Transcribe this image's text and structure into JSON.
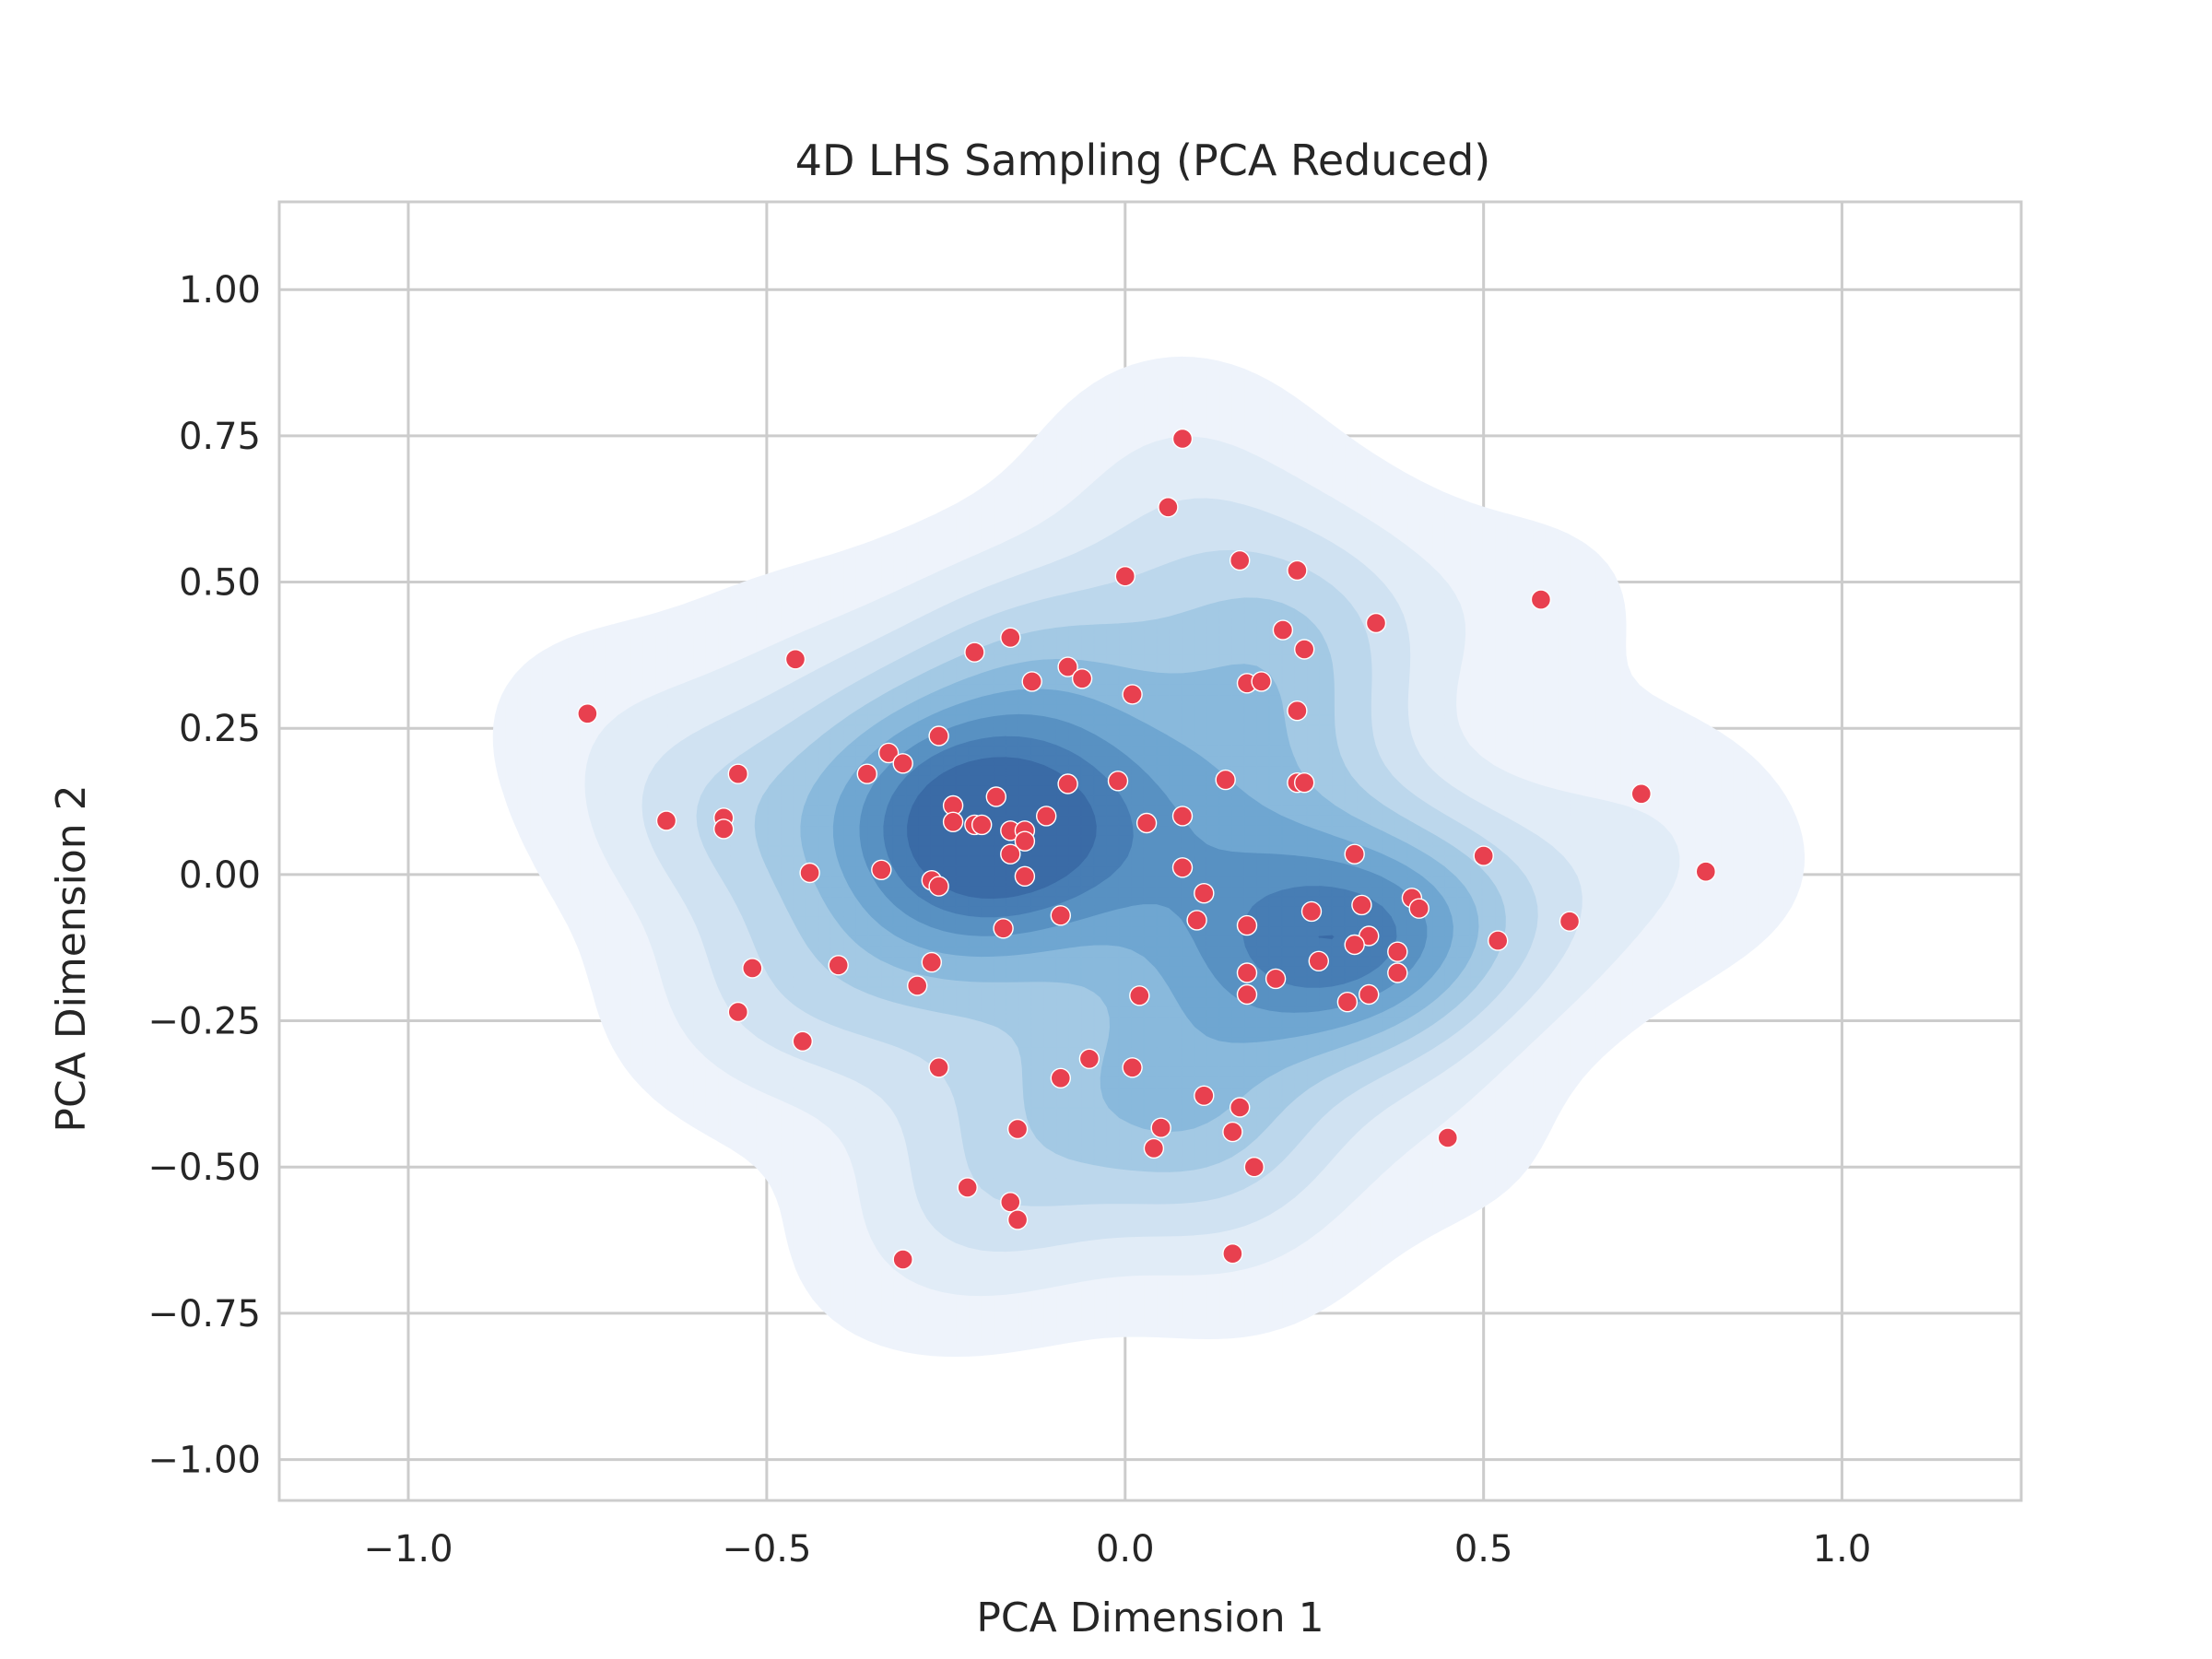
{
  "chart_data": {
    "type": "scatter",
    "title": "4D LHS Sampling (PCA Reduced)",
    "xlabel": "PCA Dimension 1",
    "ylabel": "PCA Dimension 2",
    "xlim": [
      -1.18,
      1.25
    ],
    "ylim": [
      -1.07,
      1.15
    ],
    "xticks": [
      -1.0,
      -0.5,
      0.0,
      0.5,
      1.0
    ],
    "xtick_labels": [
      "−1.0",
      "−0.5",
      "0.0",
      "0.5",
      "1.0"
    ],
    "yticks": [
      -1.0,
      -0.75,
      -0.5,
      -0.25,
      0.0,
      0.25,
      0.5,
      0.75,
      1.0
    ],
    "ytick_labels": [
      "−1.00",
      "−0.75",
      "−0.50",
      "−0.25",
      "0.00",
      "0.25",
      "0.50",
      "0.75",
      "1.00"
    ],
    "grid": true,
    "density_overlay": {
      "type": "kde_contour_filled",
      "colormap": "Blues",
      "peaks": [
        [
          -0.16,
          0.08
        ],
        [
          0.27,
          -0.1
        ]
      ]
    },
    "colors": {
      "points": "#e8404f",
      "grid": "#cccccc",
      "contour_levels": [
        "#eef3fb",
        "#e1ecf7",
        "#d0e2f2",
        "#bcd7ec",
        "#a3c9e4",
        "#89b9dc",
        "#6fa6d1",
        "#5891c2",
        "#477db4",
        "#3a6ba6"
      ]
    },
    "points": [
      [
        -0.75,
        0.275
      ],
      [
        0.08,
        0.745
      ],
      [
        0.06,
        0.628
      ],
      [
        0.16,
        0.537
      ],
      [
        0.0,
        0.51
      ],
      [
        0.24,
        0.52
      ],
      [
        0.58,
        0.47
      ],
      [
        0.35,
        0.43
      ],
      [
        0.22,
        0.418
      ],
      [
        -0.16,
        0.405
      ],
      [
        0.25,
        0.385
      ],
      [
        -0.21,
        0.38
      ],
      [
        -0.46,
        0.368
      ],
      [
        -0.08,
        0.355
      ],
      [
        -0.06,
        0.335
      ],
      [
        -0.13,
        0.33
      ],
      [
        0.17,
        0.327
      ],
      [
        0.19,
        0.33
      ],
      [
        0.01,
        0.308
      ],
      [
        0.24,
        0.28
      ],
      [
        -0.26,
        0.237
      ],
      [
        -0.33,
        0.208
      ],
      [
        -0.31,
        0.19
      ],
      [
        -0.54,
        0.172
      ],
      [
        -0.36,
        0.172
      ],
      [
        0.14,
        0.162
      ],
      [
        0.24,
        0.157
      ],
      [
        0.25,
        0.157
      ],
      [
        -0.01,
        0.16
      ],
      [
        -0.08,
        0.155
      ],
      [
        0.72,
        0.138
      ],
      [
        -0.18,
        0.133
      ],
      [
        -0.24,
        0.118
      ],
      [
        -0.11,
        0.1
      ],
      [
        0.08,
        0.1
      ],
      [
        -0.56,
        0.097
      ],
      [
        -0.64,
        0.092
      ],
      [
        -0.24,
        0.09
      ],
      [
        0.03,
        0.088
      ],
      [
        -0.21,
        0.085
      ],
      [
        -0.2,
        0.085
      ],
      [
        -0.56,
        0.078
      ],
      [
        -0.16,
        0.075
      ],
      [
        -0.14,
        0.075
      ],
      [
        -0.14,
        0.057
      ],
      [
        -0.16,
        0.035
      ],
      [
        0.32,
        0.035
      ],
      [
        0.5,
        0.032
      ],
      [
        -0.44,
        0.003
      ],
      [
        -0.34,
        0.008
      ],
      [
        0.08,
        0.012
      ],
      [
        0.81,
        0.005
      ],
      [
        -0.14,
        -0.003
      ],
      [
        -0.27,
        -0.01
      ],
      [
        -0.26,
        -0.02
      ],
      [
        0.11,
        -0.032
      ],
      [
        0.4,
        -0.04
      ],
      [
        0.33,
        -0.052
      ],
      [
        0.41,
        -0.058
      ],
      [
        0.26,
        -0.063
      ],
      [
        -0.09,
        -0.07
      ],
      [
        0.1,
        -0.078
      ],
      [
        0.62,
        -0.08
      ],
      [
        0.17,
        -0.087
      ],
      [
        -0.17,
        -0.092
      ],
      [
        0.34,
        -0.105
      ],
      [
        0.52,
        -0.113
      ],
      [
        0.32,
        -0.12
      ],
      [
        0.38,
        -0.132
      ],
      [
        0.27,
        -0.148
      ],
      [
        -0.27,
        -0.15
      ],
      [
        -0.4,
        -0.155
      ],
      [
        -0.52,
        -0.16
      ],
      [
        0.38,
        -0.168
      ],
      [
        0.17,
        -0.168
      ],
      [
        0.21,
        -0.178
      ],
      [
        -0.29,
        -0.19
      ],
      [
        0.34,
        -0.205
      ],
      [
        0.17,
        -0.205
      ],
      [
        0.02,
        -0.207
      ],
      [
        0.31,
        -0.218
      ],
      [
        -0.54,
        -0.235
      ],
      [
        -0.45,
        -0.285
      ],
      [
        -0.05,
        -0.315
      ],
      [
        -0.26,
        -0.33
      ],
      [
        0.01,
        -0.33
      ],
      [
        -0.09,
        -0.348
      ],
      [
        0.11,
        -0.378
      ],
      [
        0.16,
        -0.398
      ],
      [
        -0.15,
        -0.435
      ],
      [
        0.05,
        -0.433
      ],
      [
        0.15,
        -0.44
      ],
      [
        0.45,
        -0.45
      ],
      [
        0.04,
        -0.468
      ],
      [
        0.18,
        -0.5
      ],
      [
        -0.22,
        -0.535
      ],
      [
        -0.16,
        -0.56
      ],
      [
        -0.15,
        -0.59
      ],
      [
        0.15,
        -0.648
      ],
      [
        -0.31,
        -0.658
      ]
    ]
  }
}
